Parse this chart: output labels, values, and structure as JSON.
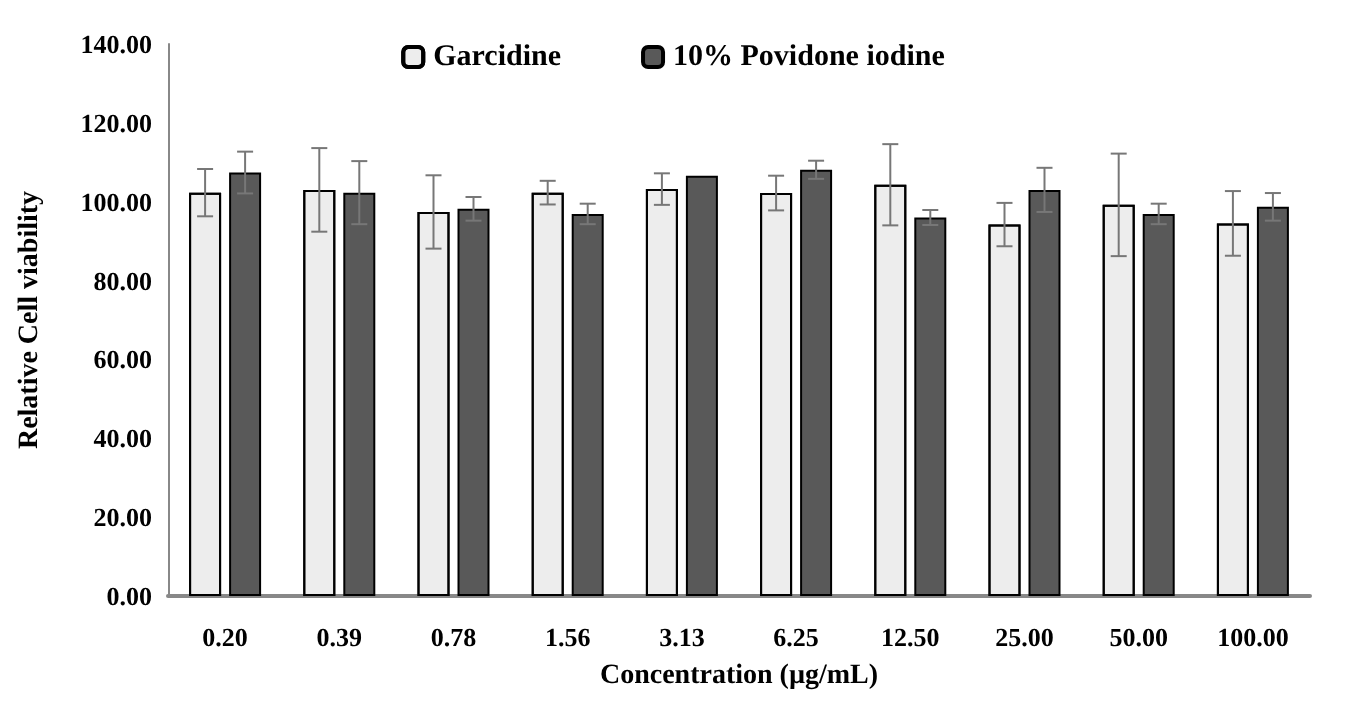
{
  "chart_data": {
    "type": "bar",
    "xlabel": "Concentration (µg/mL)",
    "ylabel": "Relative Cell viability",
    "categories": [
      "0.20",
      "0.39",
      "0.78",
      "1.56",
      "3.13",
      "6.25",
      "12.50",
      "25.00",
      "50.00",
      "100.00"
    ],
    "series": [
      {
        "name": "Garcidine",
        "color": "#ededed",
        "values": [
          102.3,
          103,
          97.4,
          102.3,
          103.2,
          102.2,
          104.3,
          94.2,
          99.2,
          94.5
        ],
        "errors": [
          6,
          10.6,
          9.3,
          3,
          4,
          4.4,
          10.3,
          5.5,
          13,
          8.2
        ]
      },
      {
        "name": "10% Povidone iodine",
        "color": "#595959",
        "values": [
          107.4,
          102.3,
          98.2,
          96.9,
          106.6,
          108.1,
          96,
          103,
          96.9,
          98.7
        ],
        "errors": [
          5.3,
          8,
          3,
          2.6,
          null,
          2.3,
          1.9,
          5.6,
          2.6,
          3.5
        ]
      }
    ],
    "ylim": [
      0,
      140
    ],
    "yticks": [
      {
        "value": 0,
        "label": "0.00"
      },
      {
        "value": 20,
        "label": "20.00"
      },
      {
        "value": 40,
        "label": "40.00"
      },
      {
        "value": 60,
        "label": "60.00"
      },
      {
        "value": 80,
        "label": "80.00"
      },
      {
        "value": 100,
        "label": "100.00"
      },
      {
        "value": 120,
        "label": "120.00"
      },
      {
        "value": 140,
        "label": "140.00"
      }
    ],
    "grid": false,
    "legend": "top"
  }
}
